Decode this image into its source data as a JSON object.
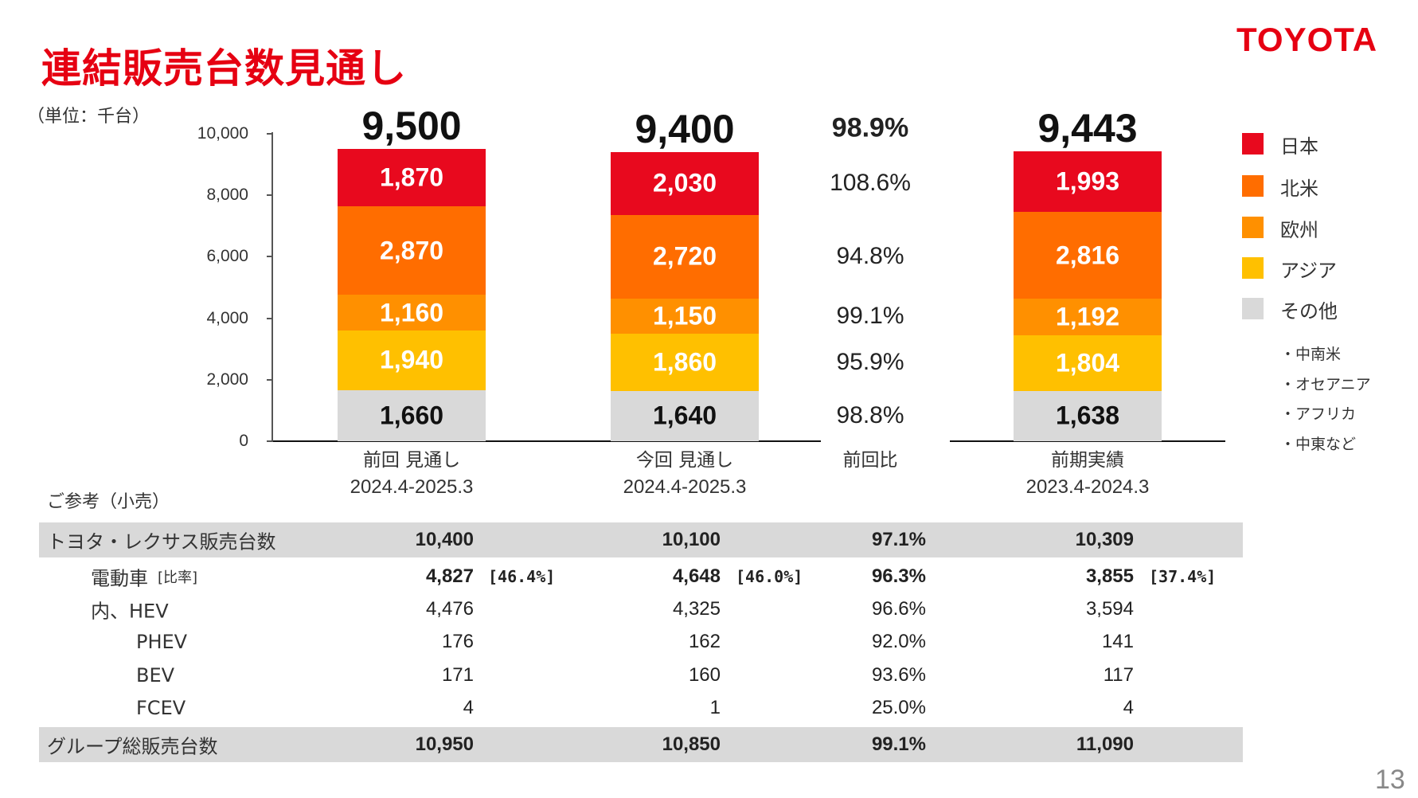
{
  "header": {
    "title": "連結販売台数見通し",
    "logo": "TOYOTA",
    "unit": "（単位：千台）"
  },
  "colors": {
    "日本": "#e8091e",
    "北米": "#ff6d00",
    "欧州": "#ff9000",
    "アジア": "#ffc000",
    "その他": "#d9d9d9",
    "title": "#e60012"
  },
  "chart_data": {
    "type": "bar",
    "stacked": true,
    "ylim": [
      0,
      10000
    ],
    "yticks": [
      "0",
      "2,000",
      "4,000",
      "6,000",
      "8,000",
      "10,000"
    ],
    "categories": [
      {
        "line1": "前回 見通し",
        "line2": "2024.4-2025.3",
        "total": "9,500"
      },
      {
        "line1": "今回 見通し",
        "line2": "2024.4-2025.3",
        "total": "9,400"
      },
      {
        "line1": "前期実績",
        "line2": "2023.4-2024.3",
        "total": "9,443"
      }
    ],
    "series": [
      {
        "name": "その他",
        "values": [
          1660,
          1640,
          1638
        ],
        "labels": [
          "1,660",
          "1,640",
          "1,638"
        ]
      },
      {
        "name": "アジア",
        "values": [
          1940,
          1860,
          1804
        ],
        "labels": [
          "1,940",
          "1,860",
          "1,804"
        ]
      },
      {
        "name": "欧州",
        "values": [
          1160,
          1150,
          1192
        ],
        "labels": [
          "1,160",
          "1,150",
          "1,192"
        ]
      },
      {
        "name": "北米",
        "values": [
          2870,
          2720,
          2816
        ],
        "labels": [
          "2,870",
          "2,720",
          "2,816"
        ]
      },
      {
        "name": "日本",
        "values": [
          1870,
          2030,
          1993
        ],
        "labels": [
          "1,870",
          "2,030",
          "1,993"
        ]
      }
    ],
    "ratio": {
      "label": "前回比",
      "total": "98.9%",
      "by_series": [
        "98.8%",
        "95.9%",
        "99.1%",
        "94.8%",
        "108.6%"
      ]
    },
    "legend": {
      "placement": "right",
      "items": [
        "日本",
        "北米",
        "欧州",
        "アジア",
        "その他"
      ],
      "other_note": [
        "・中南米",
        "・オセアニア",
        "・アフリカ",
        "・中東など"
      ]
    }
  },
  "table": {
    "caption": "ご参考（小売）",
    "rows": [
      {
        "label": "トヨタ・レクサス販売台数",
        "c1": "10,400",
        "c2": "10,100",
        "c3": "97.1%",
        "c4": "10,309",
        "gray": true,
        "bold": true
      },
      {
        "label": "電動車",
        "sub": "[比率]",
        "c1": "4,827",
        "b1": "[46.4%]",
        "c2": "4,648",
        "b2": "[46.0%]",
        "c3": "96.3%",
        "c4": "3,855",
        "b4": "[37.4%]",
        "bold": true
      },
      {
        "label": "内、HEV",
        "c1": "4,476",
        "c2": "4,325",
        "c3": "96.6%",
        "c4": "3,594"
      },
      {
        "label": "PHEV",
        "c1": "176",
        "c2": "162",
        "c3": "92.0%",
        "c4": "141"
      },
      {
        "label": "BEV",
        "c1": "171",
        "c2": "160",
        "c3": "93.6%",
        "c4": "117"
      },
      {
        "label": "FCEV",
        "c1": "4",
        "c2": "1",
        "c3": "25.0%",
        "c4": "4"
      },
      {
        "label": "グループ総販売台数",
        "c1": "10,950",
        "c2": "10,850",
        "c3": "99.1%",
        "c4": "11,090",
        "gray": true,
        "bold": true
      }
    ]
  },
  "page_number": "13"
}
